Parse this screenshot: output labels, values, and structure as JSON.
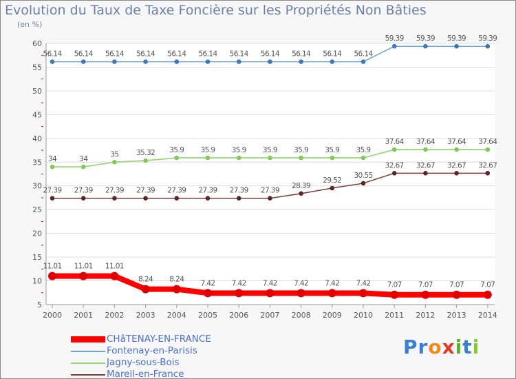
{
  "header": {
    "title": "Evolution du Taux de Taxe Foncière sur les Propriétés Non Bâties",
    "unit": "(en %)"
  },
  "logo": {
    "text": "Proxiti",
    "letters": [
      "P",
      "r",
      "o",
      "x",
      "i",
      "t",
      "i"
    ],
    "colors": [
      "#3a7fd0",
      "#3a7fd0",
      "#f08a1c",
      "#e23a2a",
      "#5bb030",
      "#3a7fd0",
      "#8bc830"
    ]
  },
  "colors": {
    "axis": "#9a9a9a",
    "grid": "#dcdcdc",
    "text": "#555555",
    "legend_text": "#4a6fc4",
    "tick_red": "#e00000"
  },
  "chart_data": {
    "type": "line",
    "title": "Evolution du Taux de Taxe Foncière sur les Propriétés Non Bâties",
    "ylabel": "(en %)",
    "xlabel": "",
    "ylim": [
      5,
      60
    ],
    "yticks": [
      "5",
      "10",
      "15",
      "20",
      "25",
      "30",
      "35",
      "40",
      "45",
      "50",
      "55",
      "60"
    ],
    "x": [
      "2000",
      "2001",
      "2002",
      "2003",
      "2004",
      "2005",
      "2006",
      "2007",
      "2008",
      "2009",
      "2010",
      "2011",
      "2012",
      "2013",
      "2014"
    ],
    "series": [
      {
        "name": "CHâTENAY-EN-FRANCE",
        "color": "#ff0000",
        "marker": "#e00000",
        "width": 8,
        "values": [
          11.01,
          11.01,
          11.01,
          8.24,
          8.24,
          7.42,
          7.42,
          7.42,
          7.42,
          7.42,
          7.42,
          7.07,
          7.07,
          7.07,
          7.07
        ],
        "labels": [
          "11.01",
          "11.01",
          "11.01",
          "8.24",
          "8.24",
          "7.42",
          "7.42",
          "7.42",
          "7.42",
          "7.42",
          "7.42",
          "7.07",
          "7.07",
          "7.07",
          "7.07"
        ]
      },
      {
        "name": "Fontenay-en-Parisis",
        "color": "#6fa3d4",
        "marker": "#3f78b5",
        "width": 1.5,
        "values": [
          56.14,
          56.14,
          56.14,
          56.14,
          56.14,
          56.14,
          56.14,
          56.14,
          56.14,
          56.14,
          56.14,
          59.39,
          59.39,
          59.39,
          59.39
        ],
        "labels": [
          "56.14",
          "56.14",
          "56.14",
          "56.14",
          "56.14",
          "56.14",
          "56.14",
          "56.14",
          "56.14",
          "56.14",
          "56.14",
          "59.39",
          "59.39",
          "59.39",
          "59.39"
        ]
      },
      {
        "name": "Jagny-sous-Bois",
        "color": "#9cd67a",
        "marker": "#82c85a",
        "width": 1.8,
        "values": [
          34,
          34,
          35,
          35.32,
          35.9,
          35.9,
          35.9,
          35.9,
          35.9,
          35.9,
          35.9,
          37.64,
          37.64,
          37.64,
          37.64
        ],
        "labels": [
          "34",
          "34",
          "35",
          "35.32",
          "35.9",
          "35.9",
          "35.9",
          "35.9",
          "35.9",
          "35.9",
          "35.9",
          "37.64",
          "37.64",
          "37.64",
          "37.64"
        ]
      },
      {
        "name": "Mareil-en-France",
        "color": "#7a3b3b",
        "marker": "#5e2525",
        "width": 1.5,
        "values": [
          27.39,
          27.39,
          27.39,
          27.39,
          27.39,
          27.39,
          27.39,
          27.39,
          28.39,
          29.52,
          30.55,
          32.67,
          32.67,
          32.67,
          32.67
        ],
        "labels": [
          "27.39",
          "27.39",
          "27.39",
          "27.39",
          "27.39",
          "27.39",
          "27.39",
          "27.39",
          "28.39",
          "29.52",
          "30.55",
          "32.67",
          "32.67",
          "32.67",
          "32.67"
        ]
      }
    ]
  }
}
